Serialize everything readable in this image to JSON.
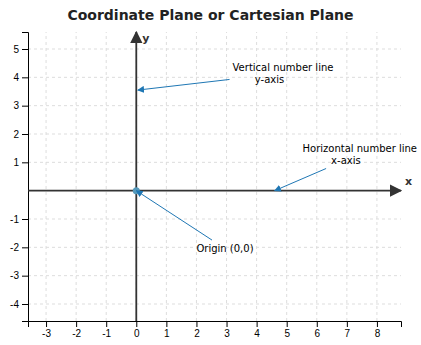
{
  "chart_data": {
    "type": "scatter",
    "title": "Coordinate Plane or Cartesian Plane",
    "x_label": "x",
    "y_label": "y",
    "xlim": [
      -3.6,
      8.8
    ],
    "ylim": [
      -4.6,
      5.6
    ],
    "xticks": [
      -3,
      -2,
      -1,
      0,
      1,
      2,
      3,
      4,
      5,
      6,
      7,
      8
    ],
    "yticks": [
      -4,
      -3,
      -2,
      -1,
      1,
      2,
      3,
      4,
      5
    ],
    "grid": true,
    "series": [
      {
        "x": [
          0.0
        ],
        "values": [
          0.0
        ],
        "color": "#5599bb",
        "marker": "circle"
      }
    ],
    "annotations": [
      {
        "text": "Vertical number line\n       y-axis",
        "x": 0.05,
        "y": 3.55,
        "text_x": 3.2,
        "text_y": 4.55
      },
      {
        "text": "Horizontal number line\n         x-axis",
        "x": 4.6,
        "y": 0.0,
        "text_x": 6.1,
        "text_y": 1.7
      },
      {
        "text": "Origin (0,0)",
        "x": 0.0,
        "y": 0.0,
        "text_x": 2.0,
        "text_y": -1.85
      }
    ]
  }
}
